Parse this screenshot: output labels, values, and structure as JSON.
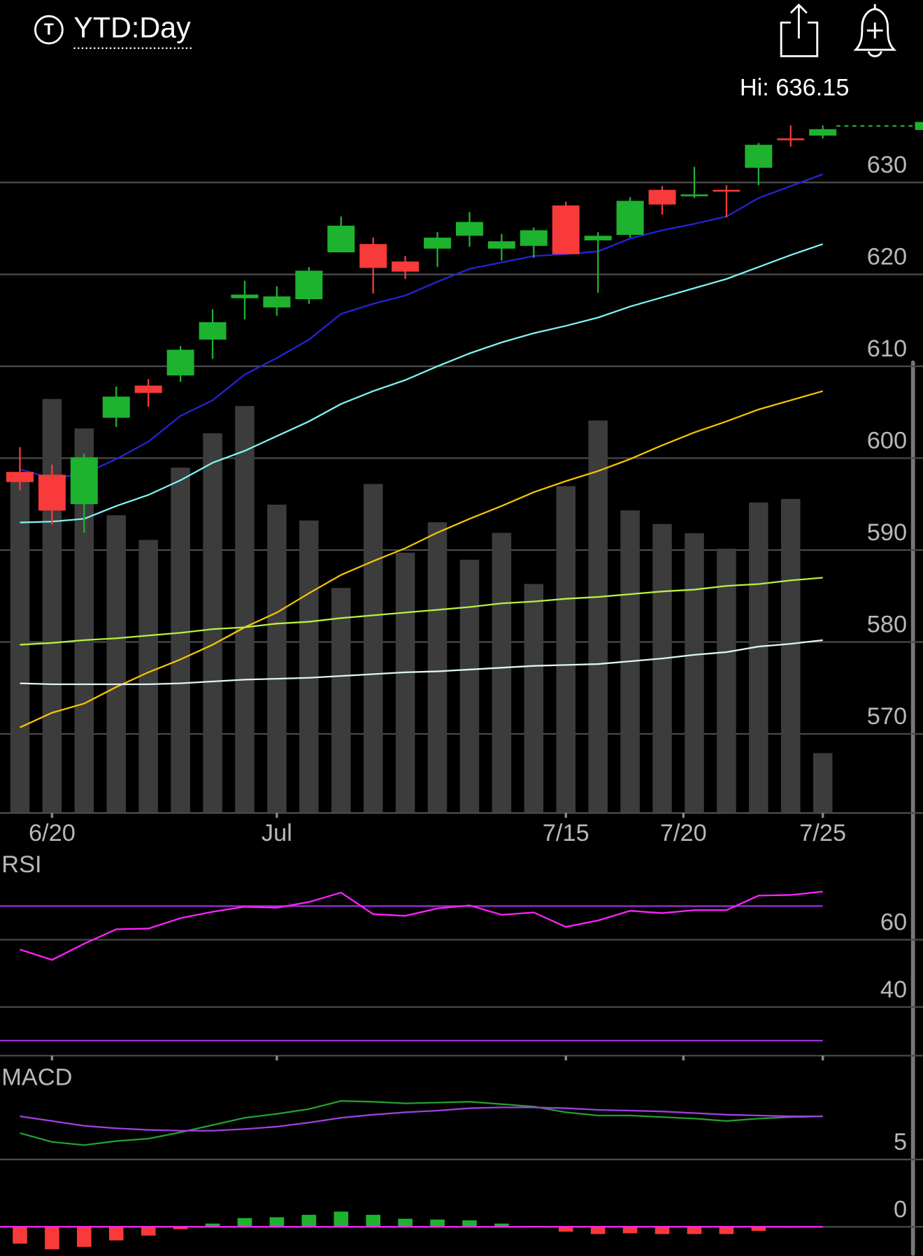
{
  "header": {
    "badge": "T",
    "title": "YTD:Day"
  },
  "chart_data": [
    {
      "type": "candlestick",
      "xlim": [
        -0.62,
        28.12
      ],
      "xticks": [
        {
          "value": 1,
          "label": "6/20"
        },
        {
          "value": 8,
          "label": "Jul"
        },
        {
          "value": 17,
          "label": "7/15"
        },
        {
          "value": 20.66,
          "label": "7/20"
        },
        {
          "value": 25,
          "label": "7/25"
        }
      ],
      "ylim": [
        562,
        642
      ],
      "yticks": [
        570,
        580,
        590,
        600,
        610,
        620,
        630
      ],
      "grid": true,
      "up_color": "#1db32e",
      "down_color": "#f83a3a",
      "open": [
        598.5,
        598.2,
        595.0,
        604.4,
        607.9,
        609.0,
        612.9,
        617.4,
        616.4,
        617.3,
        622.4,
        623.3,
        621.4,
        622.8,
        624.2,
        622.8,
        623.1,
        627.5,
        623.7,
        624.3,
        629.2,
        628.5,
        629.2,
        631.6,
        634.8,
        635.1
      ],
      "high": [
        601.2,
        599.3,
        600.5,
        607.8,
        608.6,
        612.2,
        616.2,
        619.3,
        618.7,
        620.8,
        626.3,
        624.0,
        622.0,
        624.6,
        626.8,
        624.4,
        625.1,
        627.9,
        624.6,
        628.4,
        629.6,
        631.7,
        629.7,
        634.3,
        636.2,
        636.2
      ],
      "low": [
        596.5,
        592.8,
        591.9,
        603.4,
        605.6,
        608.3,
        610.8,
        615.1,
        615.5,
        616.8,
        622.4,
        617.9,
        619.5,
        620.8,
        623.0,
        621.5,
        621.8,
        622.2,
        618.0,
        624.0,
        626.5,
        628.3,
        626.2,
        629.7,
        633.9,
        634.8
      ],
      "close": [
        597.4,
        594.3,
        600.1,
        606.7,
        607.1,
        611.8,
        614.8,
        617.8,
        617.6,
        620.4,
        625.3,
        620.7,
        620.3,
        624.0,
        625.7,
        623.6,
        624.8,
        622.2,
        624.2,
        628.0,
        627.6,
        628.7,
        629.0,
        634.1,
        634.6,
        635.8
      ],
      "moving_averages": [
        {
          "color": "#2424d8",
          "values": [
            598.8,
            597.8,
            598.3,
            599.9,
            601.8,
            604.6,
            606.3,
            609.1,
            610.9,
            612.9,
            615.7,
            616.8,
            617.7,
            619.2,
            620.6,
            621.3,
            622.0,
            622.2,
            622.5,
            623.9,
            624.8,
            625.5,
            626.3,
            628.3,
            629.6,
            630.9
          ]
        },
        {
          "color": "#7ef3f3",
          "values": [
            593.0,
            593.1,
            593.4,
            594.8,
            596.0,
            597.6,
            599.5,
            600.8,
            602.4,
            604.0,
            605.9,
            607.3,
            608.5,
            610.0,
            611.4,
            612.6,
            613.6,
            614.4,
            615.3,
            616.5,
            617.5,
            618.5,
            619.5,
            620.8,
            622.1,
            623.3
          ]
        },
        {
          "color": "#f5c400",
          "values": [
            570.7,
            572.3,
            573.3,
            575.1,
            576.7,
            578.1,
            579.7,
            581.6,
            583.2,
            585.3,
            587.3,
            588.8,
            590.2,
            591.9,
            593.4,
            594.8,
            596.3,
            597.5,
            598.6,
            599.9,
            601.4,
            602.8,
            604.0,
            605.3,
            606.3,
            607.3
          ]
        },
        {
          "color": "#b8f040",
          "values": [
            579.7,
            579.9,
            580.2,
            580.4,
            580.7,
            581.0,
            581.4,
            581.6,
            582.0,
            582.2,
            582.6,
            582.9,
            583.2,
            583.5,
            583.8,
            584.2,
            584.4,
            584.7,
            584.9,
            585.2,
            585.5,
            585.7,
            586.1,
            586.3,
            586.7,
            587.0
          ]
        },
        {
          "color": "#e0f4f8",
          "values": [
            575.5,
            575.4,
            575.4,
            575.4,
            575.4,
            575.5,
            575.7,
            575.9,
            576.0,
            576.1,
            576.3,
            576.5,
            576.7,
            576.8,
            577.0,
            577.2,
            577.4,
            577.5,
            577.6,
            577.9,
            578.2,
            578.6,
            578.9,
            579.5,
            579.8,
            580.2
          ]
        }
      ],
      "volume": {
        "color": "#3c3c3c",
        "ylim": [
          0,
          100
        ],
        "values": [
          75.5,
          94.0,
          87.3,
          67.6,
          62.0,
          78.4,
          86.2,
          92.4,
          70.0,
          66.4,
          51.1,
          74.7,
          59.1,
          66.0,
          57.5,
          63.6,
          52.0,
          74.2,
          89.1,
          68.7,
          65.6,
          63.5,
          60.0,
          70.5,
          71.3,
          13.6
        ]
      },
      "hi": {
        "value": 636.15,
        "label": "Hi: 636.15",
        "color": "#1db32e"
      }
    },
    {
      "type": "line",
      "title": "RSI",
      "xlim": [
        -0.62,
        28.12
      ],
      "ylim": [
        26,
        86
      ],
      "yticks": [
        40,
        60
      ],
      "grid": true,
      "levels": [
        30,
        70
      ],
      "level_color": "#9b30d9",
      "series": [
        {
          "color": "#ff22ff",
          "values": [
            57.1,
            54.0,
            58.8,
            63.1,
            63.3,
            66.4,
            68.3,
            69.8,
            69.5,
            71.2,
            74.0,
            67.6,
            67.1,
            69.3,
            70.2,
            67.4,
            68.1,
            63.8,
            65.7,
            68.6,
            67.9,
            68.8,
            68.8,
            73.1,
            73.3,
            74.3
          ]
        }
      ]
    },
    {
      "type": "macd",
      "title": "MACD",
      "xlim": [
        -0.62,
        28.12
      ],
      "ylim": [
        -2.1,
        12
      ],
      "yticks": [
        0,
        5
      ],
      "grid": true,
      "zero_color": "#ff22ff",
      "series": [
        {
          "color": "#22a030",
          "values": [
            6.96,
            6.31,
            6.07,
            6.37,
            6.55,
            7.02,
            7.56,
            8.1,
            8.39,
            8.75,
            9.35,
            9.29,
            9.17,
            9.23,
            9.29,
            9.11,
            8.93,
            8.51,
            8.27,
            8.27,
            8.15,
            8.04,
            7.86,
            8.04,
            8.15,
            8.21
          ]
        },
        {
          "color": "#a040e0",
          "values": [
            8.21,
            7.86,
            7.5,
            7.32,
            7.2,
            7.14,
            7.14,
            7.26,
            7.44,
            7.74,
            8.1,
            8.33,
            8.51,
            8.63,
            8.81,
            8.87,
            8.87,
            8.81,
            8.69,
            8.63,
            8.57,
            8.45,
            8.33,
            8.27,
            8.21,
            8.21
          ]
        }
      ],
      "histogram": {
        "up_color": "#1db32e",
        "down_color": "#f83a3a",
        "values": [
          -1.25,
          -1.67,
          -1.49,
          -1.01,
          -0.65,
          -0.18,
          0.24,
          0.65,
          0.71,
          0.89,
          1.13,
          0.89,
          0.6,
          0.54,
          0.48,
          0.24,
          0.05,
          -0.36,
          -0.54,
          -0.48,
          -0.54,
          -0.54,
          -0.54,
          -0.3,
          -0.06,
          0
        ]
      }
    }
  ]
}
